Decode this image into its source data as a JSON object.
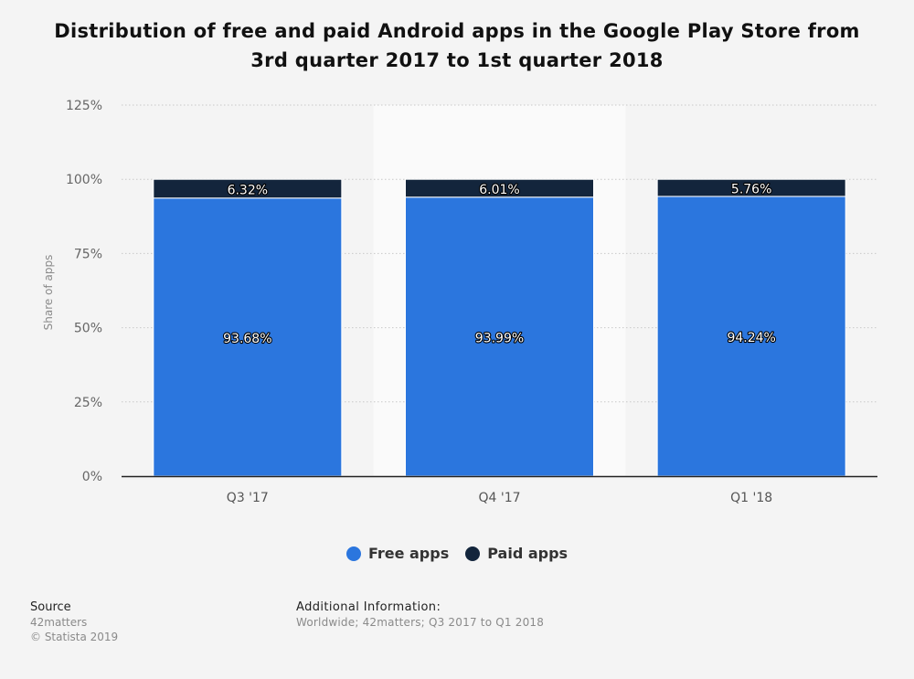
{
  "title": "Distribution of free and paid Android apps in the Google Play Store from 3rd quarter 2017 to 1st quarter 2018",
  "source": {
    "header": "Source",
    "name": "42matters",
    "copyright": "© Statista 2019"
  },
  "additional_info": {
    "header": "Additional Information:",
    "text": "Worldwide; 42matters; Q3 2017 to Q1 2018"
  },
  "colors": {
    "free": "#2b76de",
    "paid": "#13253c",
    "highlight_band": "#fafafa",
    "grid": "#c8c8c8"
  },
  "chart_data": {
    "type": "bar",
    "stacked": true,
    "categories": [
      "Q3 '17",
      "Q4 '17",
      "Q1 '18"
    ],
    "series": [
      {
        "name": "Free apps",
        "values": [
          93.68,
          93.99,
          94.24
        ],
        "labels": [
          "93.68%",
          "93.99%",
          "94.24%"
        ]
      },
      {
        "name": "Paid apps",
        "values": [
          6.32,
          6.01,
          5.76
        ],
        "labels": [
          "6.32%",
          "6.01%",
          "5.76%"
        ]
      }
    ],
    "ylabel": "Share of apps",
    "xlabel": "",
    "ylim": [
      0,
      125
    ],
    "yticks": [
      0,
      25,
      50,
      75,
      100,
      125
    ],
    "ytick_labels": [
      "0%",
      "25%",
      "50%",
      "75%",
      "100%",
      "125%"
    ],
    "highlighted_category": "Q4 '17",
    "grid": true,
    "legend_position": "bottom"
  }
}
